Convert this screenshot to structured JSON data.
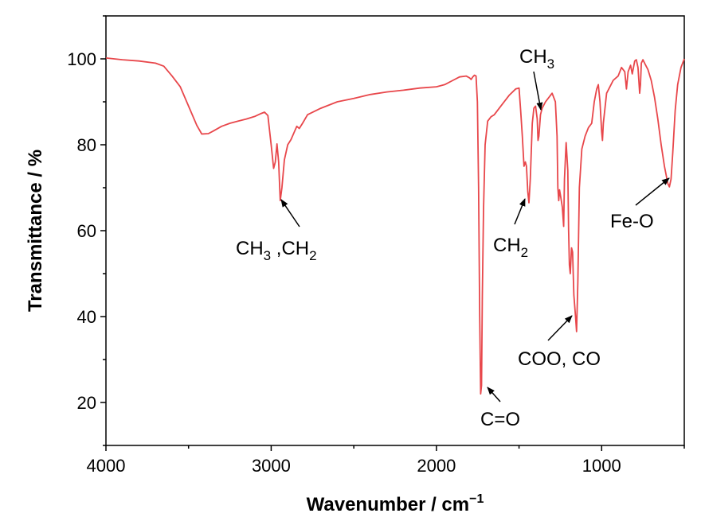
{
  "chart_data": {
    "type": "line",
    "xlabel": "Wavenumber / cm",
    "xlabel_sup": "−1",
    "ylabel": "Transmittance / %",
    "xlim": [
      4000,
      500
    ],
    "ylim": [
      10,
      110
    ],
    "x_reversed": true,
    "grid": false,
    "x_ticks": [
      4000,
      3000,
      2000,
      1000
    ],
    "y_ticks": [
      20,
      40,
      60,
      80,
      100
    ],
    "series": [
      {
        "color": "#e8474b",
        "points": [
          [
            4000,
            100.2
          ],
          [
            3900,
            99.8
          ],
          [
            3800,
            99.5
          ],
          [
            3700,
            99.0
          ],
          [
            3650,
            98.3
          ],
          [
            3600,
            96.0
          ],
          [
            3550,
            93.5
          ],
          [
            3500,
            89.0
          ],
          [
            3450,
            84.5
          ],
          [
            3420,
            82.5
          ],
          [
            3380,
            82.6
          ],
          [
            3350,
            83.2
          ],
          [
            3300,
            84.3
          ],
          [
            3250,
            85.0
          ],
          [
            3200,
            85.5
          ],
          [
            3150,
            86.0
          ],
          [
            3100,
            86.6
          ],
          [
            3060,
            87.3
          ],
          [
            3040,
            87.6
          ],
          [
            3020,
            86.8
          ],
          [
            3000,
            80.0
          ],
          [
            2985,
            74.5
          ],
          [
            2975,
            76.0
          ],
          [
            2965,
            80.2
          ],
          [
            2955,
            76.0
          ],
          [
            2945,
            67.0
          ],
          [
            2935,
            70.0
          ],
          [
            2920,
            76.5
          ],
          [
            2900,
            80.0
          ],
          [
            2880,
            81.2
          ],
          [
            2860,
            83.0
          ],
          [
            2845,
            84.3
          ],
          [
            2830,
            83.8
          ],
          [
            2810,
            85.0
          ],
          [
            2780,
            87.0
          ],
          [
            2700,
            88.5
          ],
          [
            2600,
            90.0
          ],
          [
            2500,
            90.8
          ],
          [
            2400,
            91.7
          ],
          [
            2300,
            92.3
          ],
          [
            2200,
            92.7
          ],
          [
            2100,
            93.2
          ],
          [
            2000,
            93.5
          ],
          [
            1950,
            94.0
          ],
          [
            1900,
            95.0
          ],
          [
            1860,
            95.8
          ],
          [
            1820,
            96.0
          ],
          [
            1800,
            95.6
          ],
          [
            1790,
            95.2
          ],
          [
            1780,
            95.8
          ],
          [
            1770,
            96.2
          ],
          [
            1760,
            96.0
          ],
          [
            1752,
            90.0
          ],
          [
            1745,
            70.0
          ],
          [
            1738,
            40.0
          ],
          [
            1732,
            22.0
          ],
          [
            1727,
            24.0
          ],
          [
            1722,
            45.0
          ],
          [
            1715,
            65.0
          ],
          [
            1705,
            80.0
          ],
          [
            1690,
            85.5
          ],
          [
            1670,
            86.5
          ],
          [
            1650,
            87.0
          ],
          [
            1630,
            88.0
          ],
          [
            1600,
            89.5
          ],
          [
            1560,
            91.5
          ],
          [
            1520,
            93.0
          ],
          [
            1500,
            93.2
          ],
          [
            1490,
            88.0
          ],
          [
            1480,
            82.0
          ],
          [
            1470,
            75.0
          ],
          [
            1462,
            76.0
          ],
          [
            1455,
            75.0
          ],
          [
            1447,
            69.0
          ],
          [
            1440,
            66.5
          ],
          [
            1432,
            72.0
          ],
          [
            1420,
            85.0
          ],
          [
            1410,
            88.5
          ],
          [
            1400,
            89.0
          ],
          [
            1390,
            86.0
          ],
          [
            1385,
            81.0
          ],
          [
            1380,
            82.0
          ],
          [
            1370,
            87.0
          ],
          [
            1360,
            88.5
          ],
          [
            1340,
            90.0
          ],
          [
            1300,
            92.0
          ],
          [
            1280,
            90.0
          ],
          [
            1270,
            82.0
          ],
          [
            1265,
            70.0
          ],
          [
            1260,
            67.0
          ],
          [
            1255,
            69.5
          ],
          [
            1248,
            68.0
          ],
          [
            1238,
            65.5
          ],
          [
            1230,
            61.0
          ],
          [
            1225,
            72.0
          ],
          [
            1215,
            80.5
          ],
          [
            1205,
            74.0
          ],
          [
            1200,
            60.0
          ],
          [
            1195,
            52.0
          ],
          [
            1190,
            50.0
          ],
          [
            1182,
            56.0
          ],
          [
            1176,
            55.0
          ],
          [
            1168,
            45.0
          ],
          [
            1158,
            40.0
          ],
          [
            1152,
            36.5
          ],
          [
            1144,
            48.0
          ],
          [
            1135,
            70.0
          ],
          [
            1120,
            79.0
          ],
          [
            1100,
            82.0
          ],
          [
            1080,
            84.0
          ],
          [
            1060,
            85.0
          ],
          [
            1045,
            90.0
          ],
          [
            1030,
            93.0
          ],
          [
            1020,
            94.0
          ],
          [
            1010,
            90.0
          ],
          [
            1000,
            83.0
          ],
          [
            995,
            81.0
          ],
          [
            990,
            85.0
          ],
          [
            970,
            92.0
          ],
          [
            950,
            93.5
          ],
          [
            930,
            95.0
          ],
          [
            900,
            96.0
          ],
          [
            880,
            98.0
          ],
          [
            860,
            97.0
          ],
          [
            850,
            93.0
          ],
          [
            840,
            97.0
          ],
          [
            825,
            98.5
          ],
          [
            815,
            96.5
          ],
          [
            800,
            99.5
          ],
          [
            790,
            99.8
          ],
          [
            780,
            98.0
          ],
          [
            770,
            92.0
          ],
          [
            765,
            94.0
          ],
          [
            760,
            99.0
          ],
          [
            750,
            99.8
          ],
          [
            740,
            99.0
          ],
          [
            720,
            97.5
          ],
          [
            700,
            95.0
          ],
          [
            680,
            91.0
          ],
          [
            660,
            86.0
          ],
          [
            640,
            80.0
          ],
          [
            620,
            75.0
          ],
          [
            600,
            71.0
          ],
          [
            590,
            70.2
          ],
          [
            580,
            72.0
          ],
          [
            570,
            78.0
          ],
          [
            555,
            88.0
          ],
          [
            540,
            94.0
          ],
          [
            520,
            98.0
          ],
          [
            500,
            100.0
          ]
        ]
      }
    ],
    "annotations": [
      {
        "label": "CH",
        "sub": "3",
        "mid": " ,CH",
        "sub2": "2",
        "peak": [
          2945,
          66.5
        ]
      },
      {
        "label": "CH",
        "sub": "2",
        "mid": "",
        "sub2": "",
        "peak": [
          1440,
          66.5
        ]
      },
      {
        "label": "CH",
        "sub": "3",
        "mid": "",
        "sub2": "",
        "peak": [
          1385,
          81.0
        ]
      },
      {
        "label": "C=O",
        "sub": "",
        "mid": "",
        "sub2": "",
        "peak": [
          1732,
          22.0
        ]
      },
      {
        "label": "COO, CO",
        "sub": "",
        "mid": "",
        "sub2": "",
        "peak": [
          1152,
          36.5
        ]
      },
      {
        "label": "Fe-O",
        "sub": "",
        "mid": "",
        "sub2": "",
        "peak": [
          590,
          70.2
        ]
      }
    ]
  }
}
